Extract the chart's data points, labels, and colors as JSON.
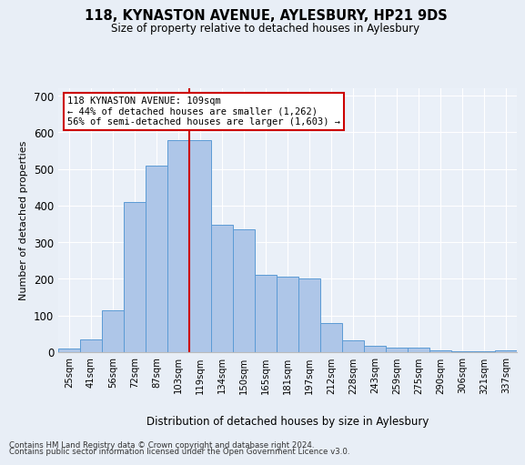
{
  "title1": "118, KYNASTON AVENUE, AYLESBURY, HP21 9DS",
  "title2": "Size of property relative to detached houses in Aylesbury",
  "xlabel": "Distribution of detached houses by size in Aylesbury",
  "ylabel": "Number of detached properties",
  "annotation_line1": "118 KYNASTON AVENUE: 109sqm",
  "annotation_line2": "← 44% of detached houses are smaller (1,262)",
  "annotation_line3": "56% of semi-detached houses are larger (1,603) →",
  "footer1": "Contains HM Land Registry data © Crown copyright and database right 2024.",
  "footer2": "Contains public sector information licensed under the Open Government Licence v3.0.",
  "bin_labels": [
    "25sqm",
    "41sqm",
    "56sqm",
    "72sqm",
    "87sqm",
    "103sqm",
    "119sqm",
    "134sqm",
    "150sqm",
    "165sqm",
    "181sqm",
    "197sqm",
    "212sqm",
    "228sqm",
    "243sqm",
    "259sqm",
    "275sqm",
    "290sqm",
    "306sqm",
    "321sqm",
    "337sqm"
  ],
  "bar_values": [
    10,
    35,
    113,
    410,
    508,
    578,
    578,
    348,
    335,
    212,
    207,
    200,
    80,
    33,
    18,
    12,
    12,
    5,
    2,
    2,
    6
  ],
  "bar_color": "#aec6e8",
  "bar_edge_color": "#5b9bd5",
  "vline_x": 5.5,
  "vline_color": "#cc0000",
  "ylim": [
    0,
    720
  ],
  "yticks": [
    0,
    100,
    200,
    300,
    400,
    500,
    600,
    700
  ],
  "background_color": "#e8eef6",
  "plot_bg_color": "#eaf0f8"
}
